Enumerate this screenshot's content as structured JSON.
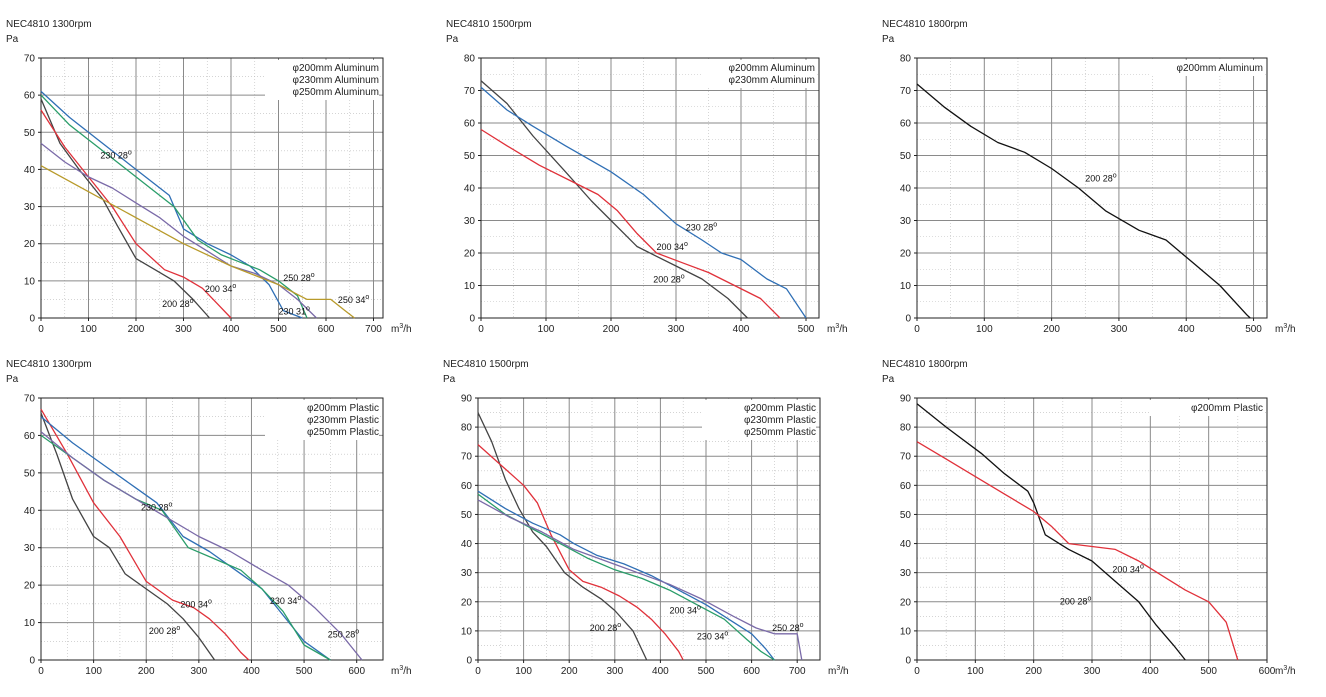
{
  "unit_label": "m",
  "unit_sup": "3",
  "unit_suffix": "/h",
  "colors": {
    "black": "#111111",
    "red": "#e0313a",
    "blue": "#2f6fb5",
    "green": "#2a9d6a",
    "purple": "#7a6aa8",
    "olive": "#b89a2a",
    "darkgray": "#444444",
    "teal": "#1d8a8a"
  },
  "chart_data": [
    {
      "type": "line",
      "title": "NEC4810 1300rpm",
      "ylabel": "Pa",
      "xlim": [
        0,
        720
      ],
      "ylim": [
        0,
        70
      ],
      "xticks": [
        0,
        100,
        200,
        300,
        400,
        500,
        600,
        700
      ],
      "yticks": [
        0,
        10,
        20,
        30,
        40,
        50,
        60,
        70
      ],
      "grid": true,
      "legend": [
        "φ200mm Aluminum",
        "φ230mm Aluminum",
        "φ250mm Aluminum"
      ],
      "series": [
        {
          "color": "#444444",
          "label": "200 28°",
          "x": [
            0,
            40,
            80,
            130,
            160,
            200,
            240,
            280,
            320,
            355
          ],
          "y": [
            59,
            47,
            40,
            32,
            25,
            16,
            13,
            10,
            5,
            0
          ]
        },
        {
          "color": "#e0313a",
          "label": "200 34°",
          "x": [
            0,
            50,
            100,
            150,
            200,
            260,
            300,
            340,
            370,
            400
          ],
          "y": [
            56,
            46,
            38,
            30,
            20,
            13,
            11,
            8,
            4,
            0
          ]
        },
        {
          "color": "#2f6fb5",
          "label": "230 28°",
          "x": [
            0,
            60,
            120,
            180,
            240,
            270,
            300,
            350,
            400,
            440,
            480,
            510,
            550
          ],
          "y": [
            61,
            54,
            48,
            42,
            36,
            33,
            24,
            20,
            17,
            14,
            9,
            2,
            0
          ]
        },
        {
          "color": "#2a9d6a",
          "label": "",
          "x": [
            0,
            60,
            120,
            180,
            240,
            280,
            330,
            380,
            420,
            460,
            500,
            540,
            560
          ],
          "y": [
            60,
            52,
            46,
            40,
            34,
            30,
            21,
            17,
            15,
            13,
            10,
            6,
            0
          ]
        },
        {
          "color": "#7a6aa8",
          "label": "230 31°",
          "x": [
            0,
            50,
            100,
            150,
            200,
            250,
            300,
            350,
            400,
            450,
            500,
            540,
            580
          ],
          "y": [
            47,
            42,
            38,
            35,
            31,
            27,
            22,
            18,
            14,
            12,
            9,
            5,
            0
          ]
        },
        {
          "color": "#b89a2a",
          "label": "250 34°",
          "x": [
            0,
            100,
            200,
            300,
            400,
            500,
            560,
            600,
            610,
            640,
            660
          ],
          "y": [
            41,
            34,
            27,
            20,
            14,
            9,
            5,
            5,
            5,
            2,
            0
          ]
        }
      ],
      "annotations": [
        {
          "text": "230 28°",
          "x": 125,
          "y": 43
        },
        {
          "text": "200 34°",
          "x": 345,
          "y": 7
        },
        {
          "text": "200 28°",
          "x": 255,
          "y": 3
        },
        {
          "text": "250 28°",
          "x": 510,
          "y": 10
        },
        {
          "text": "230 31°",
          "x": 500,
          "y": 1
        },
        {
          "text": "250 34°",
          "x": 625,
          "y": 4
        }
      ]
    },
    {
      "type": "line",
      "title": "NEC4810 1500rpm",
      "ylabel": "Pa",
      "xlim": [
        0,
        520
      ],
      "ylim": [
        0,
        80
      ],
      "xticks": [
        0,
        100,
        200,
        300,
        400,
        500
      ],
      "yticks": [
        0,
        10,
        20,
        30,
        40,
        50,
        60,
        70,
        80
      ],
      "grid": true,
      "legend": [
        "φ200mm Aluminum",
        "φ230mm Aluminum"
      ],
      "series": [
        {
          "color": "#444444",
          "label": "200 28°",
          "x": [
            0,
            40,
            80,
            130,
            170,
            200,
            240,
            270,
            300,
            340,
            380,
            410
          ],
          "y": [
            73,
            66,
            56,
            45,
            36,
            30,
            22,
            19,
            16,
            12,
            6,
            0
          ]
        },
        {
          "color": "#e0313a",
          "label": "200 34°",
          "x": [
            0,
            40,
            90,
            140,
            180,
            210,
            240,
            270,
            310,
            350,
            390,
            430,
            460
          ],
          "y": [
            58,
            53,
            47,
            42,
            38,
            33,
            26,
            20,
            17,
            14,
            10,
            6,
            0
          ]
        },
        {
          "color": "#2f6fb5",
          "label": "230 28°",
          "x": [
            0,
            40,
            80,
            130,
            200,
            250,
            300,
            340,
            370,
            400,
            440,
            470,
            500
          ],
          "y": [
            71,
            64,
            59,
            53,
            45,
            38,
            29,
            24,
            20,
            18,
            12,
            9,
            0
          ]
        }
      ],
      "annotations": [
        {
          "text": "230 28°",
          "x": 315,
          "y": 27
        },
        {
          "text": "200 34°",
          "x": 270,
          "y": 21
        },
        {
          "text": "200 28°",
          "x": 265,
          "y": 11
        }
      ]
    },
    {
      "type": "line",
      "title": "NEC4810 1800rpm",
      "ylabel": "Pa",
      "xlim": [
        0,
        520
      ],
      "ylim": [
        0,
        80
      ],
      "xticks": [
        0,
        100,
        200,
        300,
        400,
        500
      ],
      "yticks": [
        0,
        10,
        20,
        30,
        40,
        50,
        60,
        70,
        80
      ],
      "grid": true,
      "legend": [
        "φ200mm Aluminum"
      ],
      "series": [
        {
          "color": "#111111",
          "label": "200 28°",
          "x": [
            0,
            40,
            80,
            120,
            160,
            200,
            240,
            280,
            330,
            370,
            410,
            450,
            490,
            495
          ],
          "y": [
            72,
            65,
            59,
            54,
            51,
            46,
            40,
            33,
            27,
            24,
            17,
            10,
            1,
            0
          ]
        }
      ],
      "annotations": [
        {
          "text": "200 28°",
          "x": 250,
          "y": 42
        }
      ]
    },
    {
      "type": "line",
      "title": "NEC4810 1300rpm",
      "ylabel": "Pa",
      "xlim": [
        0,
        650
      ],
      "ylim": [
        0,
        70
      ],
      "xticks": [
        0,
        100,
        200,
        300,
        400,
        500,
        600
      ],
      "yticks": [
        0,
        10,
        20,
        30,
        40,
        50,
        60,
        70
      ],
      "grid": true,
      "legend": [
        "φ200mm Plastic",
        "φ230mm Plastic",
        "φ250mm Plastic"
      ],
      "series": [
        {
          "color": "#444444",
          "label": "200 28°",
          "x": [
            0,
            30,
            60,
            100,
            130,
            160,
            200,
            240,
            270,
            300,
            330
          ],
          "y": [
            66,
            55,
            43,
            33,
            30,
            23,
            19,
            15,
            11,
            6,
            0
          ]
        },
        {
          "color": "#e0313a",
          "label": "200 34°",
          "x": [
            0,
            50,
            100,
            150,
            200,
            250,
            290,
            320,
            350,
            380,
            395
          ],
          "y": [
            67,
            55,
            42,
            33,
            21,
            16,
            14,
            11,
            7,
            2,
            0
          ]
        },
        {
          "color": "#2f6fb5",
          "label": "230 28°",
          "x": [
            0,
            60,
            120,
            180,
            220,
            270,
            320,
            370,
            420,
            460,
            500,
            550
          ],
          "y": [
            65,
            58,
            52,
            46,
            42,
            33,
            29,
            24,
            19,
            12,
            5,
            0
          ]
        },
        {
          "color": "#2a9d6a",
          "label": "230 34°",
          "x": [
            0,
            60,
            120,
            180,
            230,
            280,
            330,
            380,
            420,
            460,
            500,
            550
          ],
          "y": [
            60,
            54,
            48,
            43,
            40,
            30,
            27,
            24,
            19,
            13,
            4,
            0
          ]
        },
        {
          "color": "#7a6aa8",
          "label": "250 28°",
          "x": [
            0,
            60,
            120,
            180,
            240,
            300,
            360,
            420,
            470,
            520,
            570,
            610
          ],
          "y": [
            61,
            54,
            48,
            43,
            38,
            33,
            29,
            24,
            20,
            14,
            7,
            0
          ]
        }
      ],
      "annotations": [
        {
          "text": "230 28°",
          "x": 190,
          "y": 40
        },
        {
          "text": "200 34°",
          "x": 265,
          "y": 14
        },
        {
          "text": "200 28°",
          "x": 205,
          "y": 7
        },
        {
          "text": "230 34°",
          "x": 435,
          "y": 15
        },
        {
          "text": "250 28°",
          "x": 545,
          "y": 6
        }
      ]
    },
    {
      "type": "line",
      "title": "NEC4810 1500rpm",
      "ylabel": "Pa",
      "xlim": [
        0,
        750
      ],
      "ylim": [
        0,
        90
      ],
      "xticks": [
        0,
        100,
        200,
        300,
        400,
        500,
        600,
        700
      ],
      "yticks": [
        0,
        10,
        20,
        30,
        40,
        50,
        60,
        70,
        80,
        90
      ],
      "grid": true,
      "legend": [
        "φ200mm Plastic",
        "φ230mm Plastic",
        "φ250mm Plastic"
      ],
      "series": [
        {
          "color": "#444444",
          "label": "200 28°",
          "x": [
            0,
            30,
            60,
            90,
            120,
            150,
            190,
            230,
            270,
            300,
            340,
            370
          ],
          "y": [
            85,
            75,
            62,
            52,
            44,
            39,
            30,
            25,
            21,
            17,
            10,
            0
          ]
        },
        {
          "color": "#e0313a",
          "label": "200 34°",
          "x": [
            0,
            50,
            100,
            130,
            160,
            200,
            230,
            270,
            310,
            350,
            380,
            410,
            440,
            450
          ],
          "y": [
            74,
            67,
            60,
            54,
            43,
            31,
            27,
            25,
            22,
            18,
            14,
            9,
            3,
            0
          ]
        },
        {
          "color": "#2f6fb5",
          "label": "230 34°",
          "x": [
            0,
            60,
            120,
            180,
            210,
            260,
            320,
            380,
            440,
            500,
            560,
            600,
            630,
            650
          ],
          "y": [
            58,
            52,
            47,
            43,
            40,
            36,
            33,
            29,
            24,
            19,
            13,
            9,
            4,
            0
          ]
        },
        {
          "color": "#2a9d6a",
          "label": "",
          "x": [
            0,
            60,
            120,
            180,
            240,
            300,
            360,
            420,
            480,
            540,
            590,
            620,
            650
          ],
          "y": [
            57,
            50,
            45,
            40,
            35,
            31,
            28,
            24,
            19,
            14,
            7,
            3,
            0
          ]
        },
        {
          "color": "#7a6aa8",
          "label": "250 28°",
          "x": [
            0,
            70,
            140,
            210,
            280,
            350,
            420,
            490,
            560,
            610,
            650,
            700,
            710
          ],
          "y": [
            55,
            49,
            44,
            38,
            34,
            30,
            26,
            21,
            15,
            11,
            9,
            9,
            0
          ]
        }
      ],
      "annotations": [
        {
          "text": "200 34°",
          "x": 420,
          "y": 16
        },
        {
          "text": "200 28°",
          "x": 245,
          "y": 10
        },
        {
          "text": "230 34°",
          "x": 480,
          "y": 7
        },
        {
          "text": "250 28°",
          "x": 645,
          "y": 10
        }
      ]
    },
    {
      "type": "line",
      "title": "NEC4810 1800rpm",
      "ylabel": "Pa",
      "xlim": [
        0,
        600
      ],
      "ylim": [
        0,
        90
      ],
      "xticks": [
        0,
        100,
        200,
        300,
        400,
        500,
        600
      ],
      "yticks": [
        0,
        10,
        20,
        30,
        40,
        50,
        60,
        70,
        80,
        90
      ],
      "grid": true,
      "legend": [
        "φ200mm Plastic"
      ],
      "series": [
        {
          "color": "#111111",
          "label": "200 28°",
          "x": [
            0,
            50,
            110,
            150,
            190,
            200,
            220,
            260,
            300,
            340,
            380,
            410,
            440,
            460
          ],
          "y": [
            88,
            80,
            71,
            64,
            58,
            54,
            43,
            38,
            34,
            27,
            20,
            12,
            5,
            0
          ]
        },
        {
          "color": "#e0313a",
          "label": "200 34°",
          "x": [
            0,
            50,
            100,
            150,
            200,
            230,
            260,
            300,
            340,
            380,
            420,
            460,
            500,
            530,
            550
          ],
          "y": [
            75,
            69,
            63,
            57,
            51,
            46,
            40,
            39,
            38,
            34,
            29,
            24,
            20,
            13,
            0
          ]
        }
      ],
      "annotations": [
        {
          "text": "200 34°",
          "x": 335,
          "y": 30
        },
        {
          "text": "200 28°",
          "x": 245,
          "y": 19
        }
      ]
    }
  ]
}
